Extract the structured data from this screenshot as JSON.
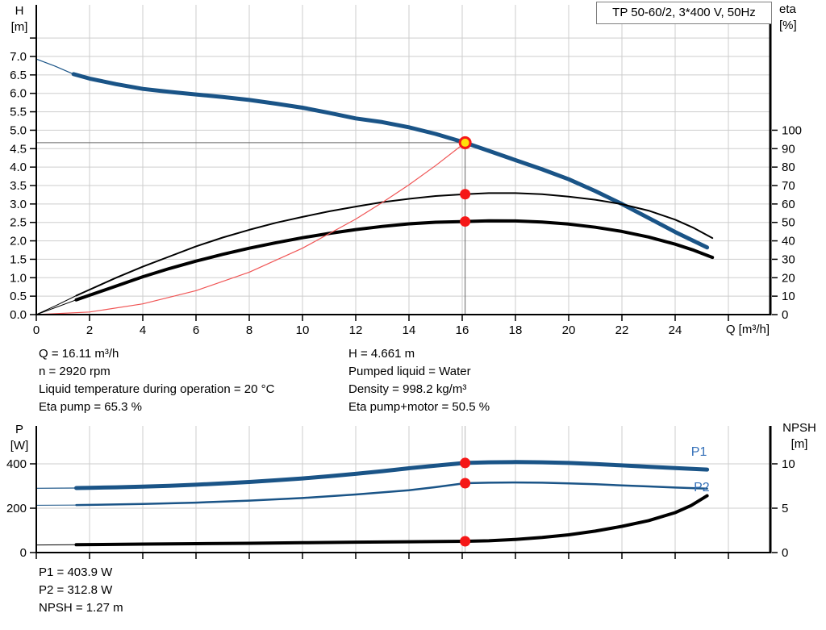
{
  "colors": {
    "curve_blue": "#1a5487",
    "label_blue": "#3470b8",
    "black": "#000000",
    "red_curve": "#f05555",
    "red_dot": "#f51717",
    "yellow": "#ffe10a",
    "grid": "#cdcdcd",
    "guide_dark": "#666666",
    "guide_light": "#b8b8b8",
    "axis": "#000000"
  },
  "info_block": {
    "left": [
      "Q = 16.11 m³/h",
      "n = 2920 rpm",
      "Liquid temperature during operation = 20 °C",
      "Eta pump = 65.3 %"
    ],
    "right": [
      "H = 4.661 m",
      "Pumped liquid = Water",
      "Density = 998.2 kg/m³",
      "Eta pump+motor = 50.5 %"
    ]
  },
  "result_block": [
    "P1 = 403.9 W",
    "P2 = 312.8 W",
    "NPSH = 1.27 m"
  ],
  "chart_data": [
    {
      "type": "line",
      "title": "TP 50-60/2, 3*400 V, 50Hz",
      "x_axis": {
        "label": "Q [m³/h]",
        "min": 0,
        "max": 27.6,
        "tick_min": 0,
        "tick_step": 2,
        "tick_labels": [
          "0",
          "2",
          "4",
          "6",
          "8",
          "10",
          "12",
          "14",
          "16",
          "18",
          "20",
          "22",
          "24",
          ""
        ]
      },
      "y_left": {
        "label_lines": [
          "H",
          "[m]"
        ],
        "unit": "m",
        "min": 0,
        "max": 8.35,
        "tick_min": 0,
        "tick_step": 0.5,
        "tick_labels": [
          "0.0",
          "0.5",
          "1.0",
          "1.5",
          "2.0",
          "2.5",
          "3.0",
          "3.5",
          "4.0",
          "4.5",
          "5.0",
          "5.5",
          "6.0",
          "6.5",
          "7.0",
          ""
        ]
      },
      "y_right": {
        "label_lines": [
          "eta",
          "[%]"
        ],
        "unit": "%",
        "min": 0,
        "max": 100,
        "tick_min": 0,
        "tick_step": 10,
        "tick_labels": [
          "0",
          "10",
          "20",
          "30",
          "40",
          "50",
          "60",
          "70",
          "80",
          "90",
          "100"
        ]
      },
      "grid": true,
      "series": [
        {
          "name": "head-curve",
          "axis": "left",
          "color": "curve_blue",
          "width": 5,
          "thin_width": 1.2,
          "thick_from": 1.4,
          "points": [
            [
              0,
              6.93
            ],
            [
              0.7,
              6.74
            ],
            [
              1.4,
              6.52
            ],
            [
              2,
              6.4
            ],
            [
              3,
              6.25
            ],
            [
              4,
              6.12
            ],
            [
              5,
              6.04
            ],
            [
              6,
              5.97
            ],
            [
              7,
              5.9
            ],
            [
              8,
              5.82
            ],
            [
              9,
              5.72
            ],
            [
              10,
              5.61
            ],
            [
              11,
              5.47
            ],
            [
              12,
              5.32
            ],
            [
              13,
              5.22
            ],
            [
              14,
              5.08
            ],
            [
              15,
              4.9
            ],
            [
              16.11,
              4.661
            ],
            [
              17,
              4.44
            ],
            [
              18,
              4.19
            ],
            [
              19,
              3.94
            ],
            [
              20,
              3.67
            ],
            [
              21,
              3.35
            ],
            [
              22,
              3.0
            ],
            [
              23,
              2.62
            ],
            [
              24,
              2.24
            ],
            [
              25.2,
              1.82
            ]
          ]
        },
        {
          "name": "eta-pump-curve",
          "axis": "right",
          "color": "black",
          "width": 2,
          "thin_width": 1,
          "thick_from": 1.5,
          "points": [
            [
              0,
              0
            ],
            [
              0.75,
              5
            ],
            [
              1.5,
              10.3
            ],
            [
              2,
              13.5
            ],
            [
              3,
              20
            ],
            [
              4,
              26
            ],
            [
              5,
              31.5
            ],
            [
              6,
              37
            ],
            [
              7,
              41.8
            ],
            [
              8,
              46
            ],
            [
              9,
              49.8
            ],
            [
              10,
              53
            ],
            [
              11,
              56
            ],
            [
              12,
              58.6
            ],
            [
              13,
              61
            ],
            [
              14,
              62.8
            ],
            [
              15,
              64.3
            ],
            [
              16.11,
              65.3
            ],
            [
              17,
              65.9
            ],
            [
              18,
              65.9
            ],
            [
              19,
              65.3
            ],
            [
              20,
              64
            ],
            [
              21,
              62.3
            ],
            [
              22,
              59.9
            ],
            [
              23,
              56.4
            ],
            [
              24,
              51.5
            ],
            [
              24.7,
              47
            ],
            [
              25.4,
              41.5
            ]
          ]
        },
        {
          "name": "eta-pump-motor-curve",
          "axis": "right",
          "color": "black",
          "width": 4,
          "thin_width": 1,
          "thick_from": 1.5,
          "points": [
            [
              0,
              0
            ],
            [
              0.75,
              4
            ],
            [
              1.5,
              8
            ],
            [
              2,
              10.5
            ],
            [
              3,
              15.5
            ],
            [
              4,
              20.5
            ],
            [
              5,
              25
            ],
            [
              6,
              29
            ],
            [
              7,
              32.7
            ],
            [
              8,
              36
            ],
            [
              9,
              39
            ],
            [
              10,
              41.7
            ],
            [
              11,
              44
            ],
            [
              12,
              46.1
            ],
            [
              13,
              47.8
            ],
            [
              14,
              49.2
            ],
            [
              15,
              50.1
            ],
            [
              16.11,
              50.5
            ],
            [
              17,
              50.9
            ],
            [
              18,
              50.8
            ],
            [
              19,
              50.2
            ],
            [
              20,
              49.1
            ],
            [
              21,
              47.4
            ],
            [
              22,
              45.1
            ],
            [
              23,
              42.1
            ],
            [
              24,
              38.2
            ],
            [
              24.7,
              34.9
            ],
            [
              25.4,
              31
            ]
          ]
        },
        {
          "name": "system-curve",
          "axis": "left",
          "color": "red_curve",
          "width": 1.2,
          "points": [
            [
              0,
              0
            ],
            [
              2,
              0.07
            ],
            [
              4,
              0.29
            ],
            [
              6,
              0.65
            ],
            [
              8,
              1.15
            ],
            [
              10,
              1.8
            ],
            [
              12,
              2.59
            ],
            [
              13,
              3.04
            ],
            [
              14,
              3.52
            ],
            [
              15,
              4.04
            ],
            [
              16.11,
              4.661
            ]
          ]
        }
      ],
      "markers": [
        {
          "name": "duty-point",
          "kind": "duty",
          "x": 16.11,
          "value": 4.661,
          "axis": "left"
        },
        {
          "name": "eta-pump-point",
          "kind": "dot",
          "x": 16.11,
          "value": 65.3,
          "axis": "right"
        },
        {
          "name": "eta-pump-motor-point",
          "kind": "dot",
          "x": 16.11,
          "value": 50.5,
          "axis": "right"
        }
      ],
      "guides": [
        {
          "kind": "h",
          "axis": "left",
          "value": 4.661,
          "x_from": 0,
          "x_to": 16.11,
          "color": "guide_dark"
        },
        {
          "kind": "v",
          "x": 16.11,
          "axis": "left",
          "value_from": 4.661,
          "value_to": 0,
          "color": "guide_dark"
        }
      ]
    },
    {
      "type": "line",
      "title": "",
      "x_axis": {
        "label": "",
        "min": 0,
        "max": 27.6,
        "tick_min": 0,
        "tick_step": 2,
        "tick_labels": [
          "",
          "",
          "",
          "",
          "",
          "",
          "",
          "",
          "",
          "",
          "",
          "",
          "",
          ""
        ]
      },
      "y_left": {
        "label_lines": [
          "P",
          "[W]"
        ],
        "unit": "W",
        "min": 0,
        "max": 571,
        "tick_min": 0,
        "tick_step": 200,
        "tick_labels": [
          "0",
          "200",
          "400"
        ]
      },
      "y_right": {
        "label_lines": [
          "NPSH",
          "[m]"
        ],
        "unit": "m",
        "min": 0,
        "max": 14.3,
        "tick_min": 0,
        "tick_step": 5,
        "tick_labels": [
          "0",
          "5",
          "10"
        ]
      },
      "grid": true,
      "series": [
        {
          "name": "p1-curve",
          "axis": "left",
          "color": "curve_blue",
          "width": 5,
          "thin_width": 1.2,
          "thick_from": 1.5,
          "points": [
            [
              0,
              290
            ],
            [
              1.5,
              291
            ],
            [
              2,
              292
            ],
            [
              3,
              294
            ],
            [
              4,
              297
            ],
            [
              5,
              301
            ],
            [
              6,
              306
            ],
            [
              7,
              312
            ],
            [
              8,
              318
            ],
            [
              9,
              326
            ],
            [
              10,
              334
            ],
            [
              11,
              344
            ],
            [
              12,
              355
            ],
            [
              13,
              367
            ],
            [
              14,
              380
            ],
            [
              15,
              392
            ],
            [
              16.11,
              403.9
            ],
            [
              17,
              407
            ],
            [
              18,
              408
            ],
            [
              19,
              407
            ],
            [
              20,
              404
            ],
            [
              21,
              399
            ],
            [
              22,
              393
            ],
            [
              23,
              387
            ],
            [
              24,
              381
            ],
            [
              25.2,
              374
            ]
          ]
        },
        {
          "name": "p2-curve",
          "axis": "left",
          "color": "curve_blue",
          "width": 2.5,
          "thin_width": 1,
          "thick_from": 1.5,
          "points": [
            [
              0,
              213
            ],
            [
              1.5,
              214
            ],
            [
              2,
              215
            ],
            [
              4,
              219
            ],
            [
              6,
              225
            ],
            [
              8,
              234
            ],
            [
              10,
              246
            ],
            [
              12,
              262
            ],
            [
              14,
              281
            ],
            [
              15,
              295
            ],
            [
              16.11,
              312.8
            ],
            [
              17,
              315
            ],
            [
              18,
              316
            ],
            [
              19,
              315
            ],
            [
              20,
              312
            ],
            [
              21,
              308
            ],
            [
              22,
              303
            ],
            [
              23,
              298
            ],
            [
              24,
              293
            ],
            [
              25.2,
              288
            ]
          ]
        },
        {
          "name": "npsh-curve",
          "axis": "right",
          "color": "black",
          "width": 4,
          "thin_width": 1,
          "thick_from": 1.5,
          "points": [
            [
              0,
              0.85
            ],
            [
              1.5,
              0.88
            ],
            [
              2,
              0.9
            ],
            [
              4,
              0.95
            ],
            [
              6,
              1.0
            ],
            [
              8,
              1.05
            ],
            [
              10,
              1.11
            ],
            [
              12,
              1.17
            ],
            [
              14,
              1.22
            ],
            [
              16.11,
              1.27
            ],
            [
              17,
              1.33
            ],
            [
              18,
              1.48
            ],
            [
              19,
              1.7
            ],
            [
              20,
              2.0
            ],
            [
              21,
              2.42
            ],
            [
              22,
              2.95
            ],
            [
              23,
              3.6
            ],
            [
              24,
              4.5
            ],
            [
              24.6,
              5.3
            ],
            [
              25.2,
              6.4
            ]
          ]
        }
      ],
      "series_labels": [
        {
          "text": "P1",
          "axis": "left",
          "x": 24.6,
          "value": 437
        },
        {
          "text": "P2",
          "axis": "left",
          "x": 24.7,
          "value": 276
        }
      ],
      "markers": [
        {
          "name": "p1-point",
          "kind": "dot",
          "x": 16.11,
          "value": 403.9,
          "axis": "left"
        },
        {
          "name": "p2-point",
          "kind": "dot",
          "x": 16.11,
          "value": 312.8,
          "axis": "left"
        },
        {
          "name": "npsh-point",
          "kind": "dot",
          "x": 16.11,
          "value": 1.27,
          "axis": "right"
        }
      ],
      "guides": [
        {
          "kind": "v",
          "x": 16.11,
          "axis": "left",
          "value_from": 571,
          "value_to": 0,
          "color": "guide_light"
        }
      ]
    }
  ]
}
